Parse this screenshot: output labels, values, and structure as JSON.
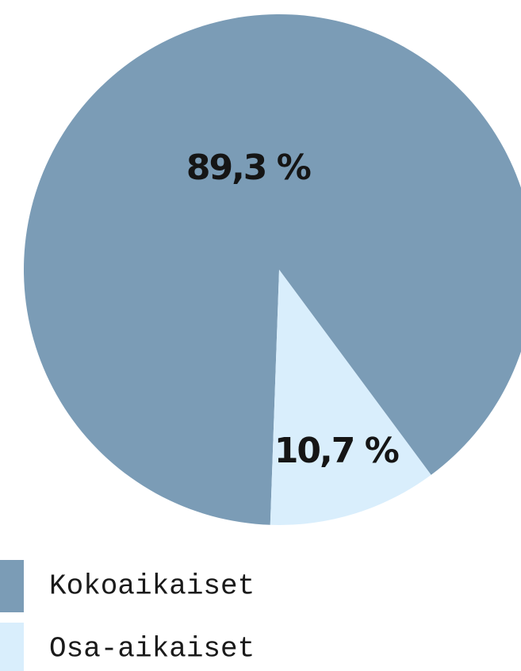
{
  "chart_data": {
    "type": "pie",
    "categories": [
      "Kokoaikaiset",
      "Osa-aikaiset"
    ],
    "values": [
      89.3,
      10.7
    ],
    "value_labels": [
      "89,3 %",
      "10,7 %"
    ],
    "colors": [
      "#7b9cb6",
      "#d9eefc"
    ]
  }
}
